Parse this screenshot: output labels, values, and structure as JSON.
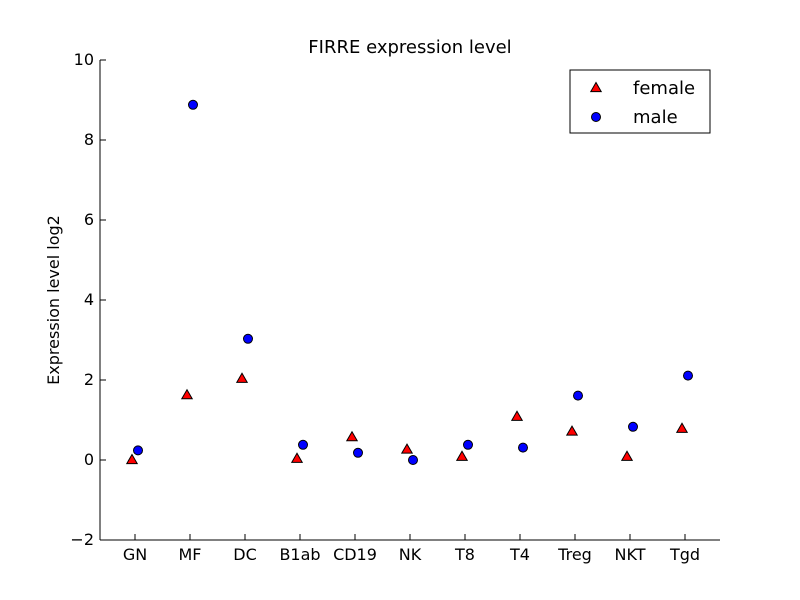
{
  "chart_data": {
    "type": "scatter",
    "title": "FIRRE expression level",
    "xlabel": "",
    "ylabel": "Expression level log2",
    "categories": [
      "GN",
      "MF",
      "DC",
      "B1ab",
      "CD19",
      "NK",
      "T8",
      "T4",
      "Treg",
      "NKT",
      "Tgd"
    ],
    "ylim": [
      -2,
      10
    ],
    "yticks": [
      -2,
      0,
      2,
      4,
      6,
      8,
      10
    ],
    "ytick_labels": [
      "−2",
      "0",
      "2",
      "4",
      "6",
      "8",
      "10"
    ],
    "grid": false,
    "legend_position": "top-right",
    "series": [
      {
        "name": "female",
        "marker": "triangle",
        "color": "#ff0000",
        "values": [
          0.0,
          1.62,
          2.03,
          0.03,
          0.57,
          0.26,
          0.08,
          1.08,
          0.71,
          0.08,
          0.78
        ]
      },
      {
        "name": "male",
        "marker": "circle",
        "color": "#0000ff",
        "values": [
          0.24,
          8.88,
          3.03,
          0.38,
          0.18,
          0.0,
          0.38,
          0.31,
          1.61,
          0.83,
          2.11
        ]
      }
    ]
  }
}
